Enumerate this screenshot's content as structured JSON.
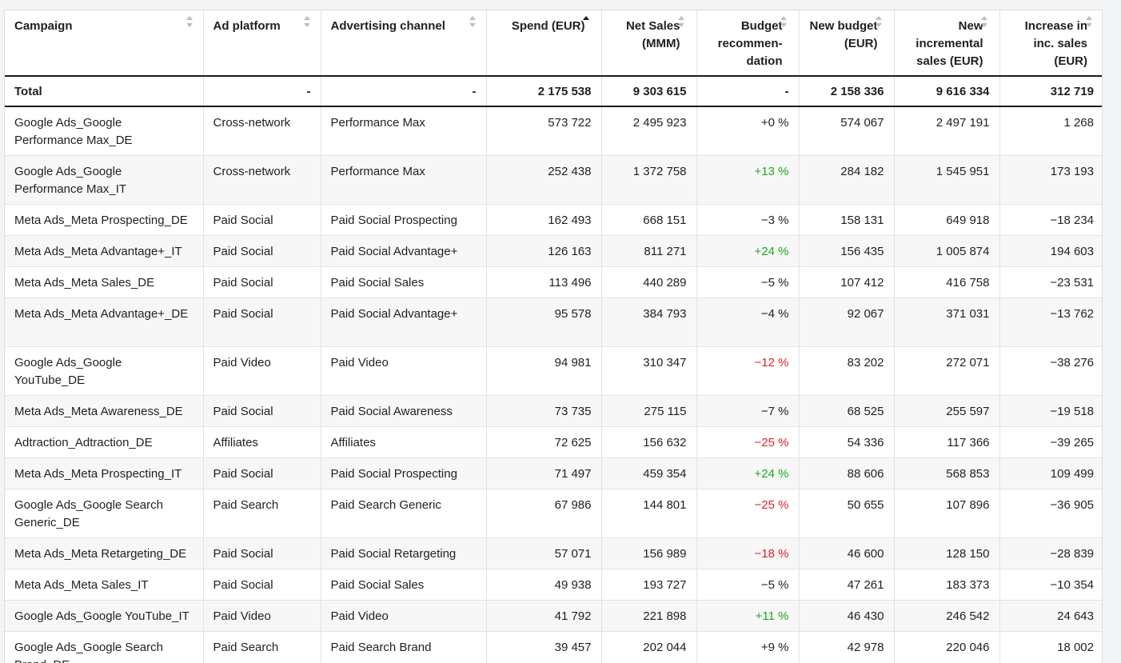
{
  "columns": [
    {
      "key": "campaign",
      "label": "Campaign",
      "align": "left",
      "sort": "none"
    },
    {
      "key": "platform",
      "label": "Ad platform",
      "align": "left",
      "sort": "none"
    },
    {
      "key": "channel",
      "label": "Advertising channel",
      "align": "left",
      "sort": "none"
    },
    {
      "key": "spend",
      "label": "Spend (EUR)",
      "align": "right",
      "sort": "asc"
    },
    {
      "key": "net_sales",
      "label": "Net Sales (MMM)",
      "align": "right",
      "sort": "none"
    },
    {
      "key": "budget_rec",
      "label": "Budget recommen-dation",
      "align": "right",
      "sort": "none"
    },
    {
      "key": "new_budget",
      "label": "New budget (EUR)",
      "align": "right",
      "sort": "none"
    },
    {
      "key": "new_inc_sales",
      "label": "New incremental sales (EUR)",
      "align": "right",
      "sort": "none"
    },
    {
      "key": "increase",
      "label": "Increase in inc. sales (EUR)",
      "align": "right",
      "sort": "none"
    }
  ],
  "total": {
    "campaign": "Total",
    "platform": "-",
    "channel": "-",
    "spend": "2 175 538",
    "net_sales": "9 303 615",
    "budget_rec": "-",
    "new_budget": "2 158 336",
    "new_inc_sales": "9 616 334",
    "increase": "312 719"
  },
  "rows": [
    {
      "campaign": "Google Ads_Google Performance Max_DE",
      "platform": "Cross-network",
      "channel": "Performance Max",
      "spend": "573 722",
      "net_sales": "2 495 923",
      "budget_rec": "+0 %",
      "rec_status": "neutral",
      "new_budget": "574 067",
      "new_inc_sales": "2 497 191",
      "increase": "1 268"
    },
    {
      "campaign": "Google Ads_Google Performance Max_IT",
      "platform": "Cross-network",
      "channel": "Performance Max",
      "spend": "252 438",
      "net_sales": "1 372 758",
      "budget_rec": "+13 %",
      "rec_status": "positive",
      "new_budget": "284 182",
      "new_inc_sales": "1 545 951",
      "increase": "173 193"
    },
    {
      "campaign": "Meta Ads_Meta Prospecting_DE",
      "platform": "Paid Social",
      "channel": "Paid Social Prospecting",
      "spend": "162 493",
      "net_sales": "668 151",
      "budget_rec": "−3 %",
      "rec_status": "neutral",
      "new_budget": "158 131",
      "new_inc_sales": "649 918",
      "increase": "−18 234"
    },
    {
      "campaign": "Meta Ads_Meta Advantage+_IT",
      "platform": "Paid Social",
      "channel": "Paid Social Advantage+",
      "spend": "126 163",
      "net_sales": "811 271",
      "budget_rec": "+24 %",
      "rec_status": "positive",
      "new_budget": "156 435",
      "new_inc_sales": "1 005 874",
      "increase": "194 603"
    },
    {
      "campaign": "Meta Ads_Meta Sales_DE",
      "platform": "Paid Social",
      "channel": "Paid Social Sales",
      "spend": "113 496",
      "net_sales": "440 289",
      "budget_rec": "−5 %",
      "rec_status": "neutral",
      "new_budget": "107 412",
      "new_inc_sales": "416 758",
      "increase": "−23 531"
    },
    {
      "campaign": "Meta Ads_Meta Advantage+_DE",
      "platform": "Paid Social",
      "channel": "Paid Social Advantage+",
      "spend": "95 578",
      "net_sales": "384 793",
      "budget_rec": "−4 %",
      "rec_status": "neutral",
      "new_budget": "92 067",
      "new_inc_sales": "371 031",
      "increase": "−13 762"
    },
    {
      "campaign": "Google Ads_Google YouTube_DE",
      "platform": "Paid Video",
      "channel": "Paid Video",
      "spend": "94 981",
      "net_sales": "310 347",
      "budget_rec": "−12 %",
      "rec_status": "negative",
      "new_budget": "83 202",
      "new_inc_sales": "272 071",
      "increase": "−38 276"
    },
    {
      "campaign": "Meta Ads_Meta Awareness_DE",
      "platform": "Paid Social",
      "channel": "Paid Social Awareness",
      "spend": "73 735",
      "net_sales": "275 115",
      "budget_rec": "−7 %",
      "rec_status": "neutral",
      "new_budget": "68 525",
      "new_inc_sales": "255 597",
      "increase": "−19 518"
    },
    {
      "campaign": "Adtraction_Adtraction_DE",
      "platform": "Affiliates",
      "channel": "Affiliates",
      "spend": "72 625",
      "net_sales": "156 632",
      "budget_rec": "−25 %",
      "rec_status": "negative",
      "new_budget": "54 336",
      "new_inc_sales": "117 366",
      "increase": "−39 265"
    },
    {
      "campaign": "Meta Ads_Meta Prospecting_IT",
      "platform": "Paid Social",
      "channel": "Paid Social Prospecting",
      "spend": "71 497",
      "net_sales": "459 354",
      "budget_rec": "+24 %",
      "rec_status": "positive",
      "new_budget": "88 606",
      "new_inc_sales": "568 853",
      "increase": "109 499"
    },
    {
      "campaign": "Google Ads_Google Search Generic_DE",
      "platform": "Paid Search",
      "channel": "Paid Search Generic",
      "spend": "67 986",
      "net_sales": "144 801",
      "budget_rec": "−25 %",
      "rec_status": "negative",
      "new_budget": "50 655",
      "new_inc_sales": "107 896",
      "increase": "−36 905"
    },
    {
      "campaign": "Meta Ads_Meta Retargeting_DE",
      "platform": "Paid Social",
      "channel": "Paid Social Retargeting",
      "spend": "57 071",
      "net_sales": "156 989",
      "budget_rec": "−18 %",
      "rec_status": "negative",
      "new_budget": "46 600",
      "new_inc_sales": "128 150",
      "increase": "−28 839"
    },
    {
      "campaign": "Meta Ads_Meta Sales_IT",
      "platform": "Paid Social",
      "channel": "Paid Social Sales",
      "spend": "49 938",
      "net_sales": "193 727",
      "budget_rec": "−5 %",
      "rec_status": "neutral",
      "new_budget": "47 261",
      "new_inc_sales": "183 373",
      "increase": "−10 354"
    },
    {
      "campaign": "Google Ads_Google YouTube_IT",
      "platform": "Paid Video",
      "channel": "Paid Video",
      "spend": "41 792",
      "net_sales": "221 898",
      "budget_rec": "+11 %",
      "rec_status": "positive",
      "new_budget": "46 430",
      "new_inc_sales": "246 542",
      "increase": "24 643"
    },
    {
      "campaign": "Google Ads_Google Search Brand_DE",
      "platform": "Paid Search",
      "channel": "Paid Search Brand",
      "spend": "39 457",
      "net_sales": "202 044",
      "budget_rec": "+9 %",
      "rec_status": "neutral",
      "new_budget": "42 978",
      "new_inc_sales": "220 046",
      "increase": "18 002"
    }
  ],
  "colors": {
    "positive": "#1aaa1a",
    "negative": "#e0202a",
    "neutral": "#1f1f1f"
  }
}
